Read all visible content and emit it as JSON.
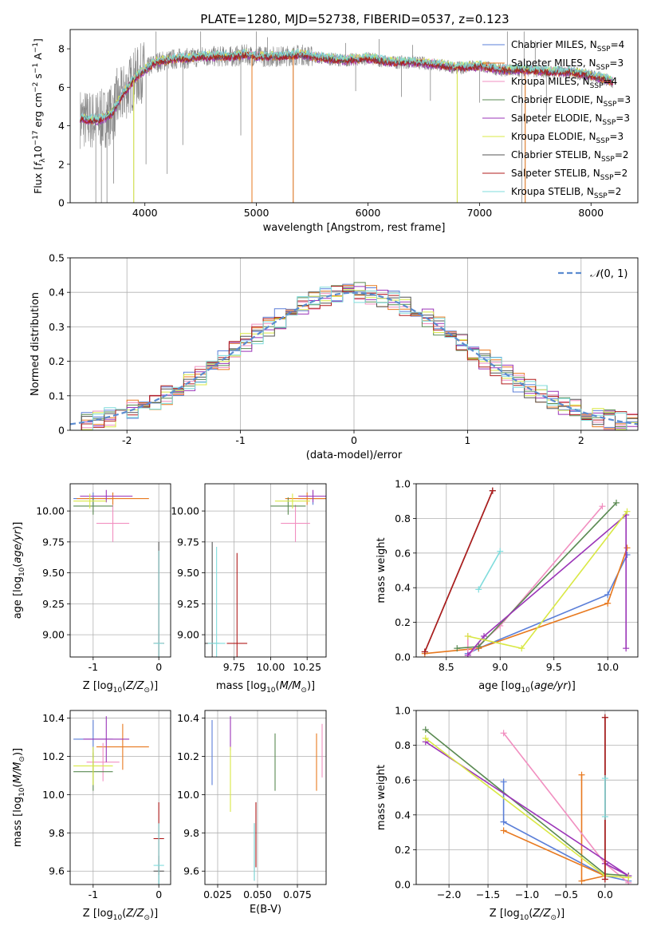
{
  "figure": {
    "title": "PLATE=1280, MJD=52738, FIBERID=0537, z=0.123"
  },
  "series_colors": {
    "Chabrier MILES": "#5b7fd8",
    "Salpeter MILES": "#e8791f",
    "Kroupa MILES": "#f18fc0",
    "Chabrier ELODIE": "#5a8a52",
    "Salpeter ELODIE": "#9b35b8",
    "Kroupa ELODIE": "#d9e844",
    "Chabrier STELIB": "#555555",
    "Salpeter STELIB": "#b01c1c",
    "Kroupa STELIB": "#7fdcdc"
  },
  "chart_data": [
    {
      "panel": "spectrum",
      "type": "line",
      "xlabel": "wavelength [Angstrom, rest frame]",
      "ylabel": "Flux [f_λ10^-17 erg cm^-2 s^-1 A^-1]",
      "xlim": [
        3330,
        8420
      ],
      "ylim": [
        0,
        9
      ],
      "xticks": [
        4000,
        5000,
        6000,
        7000,
        8000
      ],
      "yticks": [
        0,
        2,
        4,
        6,
        8
      ],
      "grid": false,
      "legend_position": "right",
      "data_color": "#888888",
      "legend": [
        {
          "name": "Chabrier MILES",
          "nssp": "4"
        },
        {
          "name": "Salpeter MILES",
          "nssp": "3"
        },
        {
          "name": "Kroupa MILES",
          "nssp": "4"
        },
        {
          "name": "Chabrier ELODIE",
          "nssp": "3"
        },
        {
          "name": "Salpeter ELODIE",
          "nssp": "3"
        },
        {
          "name": "Kroupa ELODIE",
          "nssp": "3"
        },
        {
          "name": "Chabrier STELIB",
          "nssp": "2"
        },
        {
          "name": "Salpeter STELIB",
          "nssp": "2"
        },
        {
          "name": "Kroupa STELIB",
          "nssp": "2"
        }
      ],
      "model_continuum": {
        "x": [
          3420,
          3500,
          3600,
          3700,
          3800,
          3900,
          4000,
          4100,
          4200,
          4300,
          4400,
          4500,
          4600,
          4700,
          4800,
          4900,
          5000,
          5200,
          5400,
          5600,
          5800,
          6000,
          6200,
          6400,
          6600,
          6800,
          7000,
          7200,
          7400,
          7600,
          7800,
          8000,
          8200
        ],
        "y": [
          4.4,
          4.3,
          4.3,
          4.6,
          5.6,
          6.4,
          6.9,
          7.3,
          7.4,
          7.5,
          7.5,
          7.6,
          7.6,
          7.6,
          7.6,
          7.7,
          7.6,
          7.6,
          7.7,
          7.5,
          7.4,
          7.5,
          7.3,
          7.3,
          7.2,
          7.0,
          7.1,
          6.9,
          6.9,
          6.8,
          6.8,
          6.6,
          6.3
        ]
      },
      "data_spikes_down": [
        [
          3560,
          0.0
        ],
        [
          3610,
          0.0
        ],
        [
          3660,
          0.0
        ],
        [
          3720,
          1.0
        ],
        [
          3900,
          0.0
        ],
        [
          4010,
          2.0
        ],
        [
          4200,
          1.5
        ],
        [
          4340,
          3.0
        ],
        [
          4860,
          3.5
        ],
        [
          4960,
          0.0
        ],
        [
          5330,
          0.0
        ],
        [
          5890,
          5.8
        ],
        [
          6300,
          5.5
        ],
        [
          6560,
          5.3
        ],
        [
          6800,
          0.0
        ],
        [
          7000,
          5.2
        ],
        [
          7380,
          0.0
        ],
        [
          7410,
          0.0
        ],
        [
          7600,
          4.5
        ]
      ],
      "data_spikes_up": [
        [
          3600,
          5.8
        ],
        [
          3750,
          7.0
        ],
        [
          4100,
          8.9
        ],
        [
          4500,
          8.9
        ],
        [
          5000,
          8.9
        ],
        [
          5100,
          8.6
        ],
        [
          5800,
          8.3
        ],
        [
          6100,
          8.5
        ],
        [
          6400,
          8.2
        ],
        [
          7250,
          8.9
        ],
        [
          7400,
          8.9
        ],
        [
          7500,
          8.4
        ]
      ]
    },
    {
      "panel": "residuals",
      "type": "line",
      "xlabel": "(data-model)/error",
      "ylabel": "Normed distribution",
      "xlim": [
        -2.5,
        2.5
      ],
      "ylim": [
        0,
        0.5
      ],
      "xticks": [
        -2,
        -1,
        0,
        1,
        2
      ],
      "yticks": [
        0.0,
        0.1,
        0.2,
        0.3,
        0.4,
        0.5
      ],
      "grid": true,
      "legend": [
        "N(0, 1)"
      ],
      "legend_position": "top-right",
      "gaussian": {
        "mu": 0,
        "sigma": 1
      }
    },
    {
      "panel": "age-Z",
      "type": "scatter",
      "xlabel": "Z [log10(Z/Z⊙)]",
      "ylabel": "age  [log10(age/yr)]",
      "xlim": [
        -1.35,
        0.18
      ],
      "ylim": [
        8.82,
        10.22
      ],
      "xticks": [
        -1,
        0
      ],
      "yticks": [
        9.0,
        9.25,
        9.5,
        9.75,
        10.0
      ],
      "grid": true,
      "points": [
        {
          "series": "Chabrier MILES",
          "x": -1.0,
          "y": 10.1,
          "xerr": 0.3,
          "yerr": 0.05
        },
        {
          "series": "Salpeter MILES",
          "x": -0.7,
          "y": 10.1,
          "xerr": 0.55,
          "yerr": 0.05
        },
        {
          "series": "Kroupa MILES",
          "x": -0.7,
          "y": 9.9,
          "xerr": 0.25,
          "yerr": 0.15
        },
        {
          "series": "Chabrier ELODIE",
          "x": -1.0,
          "y": 10.04,
          "xerr": 0.3,
          "yerr": 0.07
        },
        {
          "series": "Salpeter ELODIE",
          "x": -0.8,
          "y": 10.12,
          "xerr": 0.4,
          "yerr": 0.05
        },
        {
          "series": "Kroupa ELODIE",
          "x": -1.05,
          "y": 10.08,
          "xerr": 0.25,
          "yerr": 0.06
        },
        {
          "series": "Chabrier STELIB",
          "x": 0.0,
          "y": 8.93,
          "xerr": 0.08,
          "yerr": 0.82
        },
        {
          "series": "Salpeter STELIB",
          "x": 0.0,
          "y": 8.93,
          "xerr": 0.08,
          "yerr": 0.75
        },
        {
          "series": "Kroupa STELIB",
          "x": 0.0,
          "y": 8.93,
          "xerr": 0.08,
          "yerr": 0.75
        }
      ]
    },
    {
      "panel": "age-mass",
      "type": "scatter",
      "xlabel": "mass [log10(M/M⊙)]",
      "ylabel": "",
      "xlim": [
        9.55,
        10.38
      ],
      "ylim": [
        8.82,
        10.22
      ],
      "xticks": [
        9.75,
        10.0,
        10.25
      ],
      "yticks": [
        9.0,
        9.25,
        9.5,
        9.75,
        10.0
      ],
      "grid": true,
      "points": [
        {
          "series": "Chabrier MILES",
          "x": 10.29,
          "y": 10.1,
          "xerr": 0.1,
          "yerr": 0.05
        },
        {
          "series": "Salpeter MILES",
          "x": 10.25,
          "y": 10.1,
          "xerr": 0.15,
          "yerr": 0.05
        },
        {
          "series": "Kroupa MILES",
          "x": 10.17,
          "y": 9.9,
          "xerr": 0.1,
          "yerr": 0.15
        },
        {
          "series": "Chabrier ELODIE",
          "x": 10.12,
          "y": 10.04,
          "xerr": 0.12,
          "yerr": 0.07
        },
        {
          "series": "Salpeter ELODIE",
          "x": 10.29,
          "y": 10.12,
          "xerr": 0.1,
          "yerr": 0.05
        },
        {
          "series": "Kroupa ELODIE",
          "x": 10.15,
          "y": 10.08,
          "xerr": 0.12,
          "yerr": 0.06
        },
        {
          "series": "Chabrier STELIB",
          "x": 9.6,
          "y": 8.93,
          "xerr": 0.05,
          "yerr": 0.82
        },
        {
          "series": "Salpeter STELIB",
          "x": 9.77,
          "y": 8.93,
          "xerr": 0.07,
          "yerr": 0.73
        },
        {
          "series": "Kroupa STELIB",
          "x": 9.63,
          "y": 8.93,
          "xerr": 0.06,
          "yerr": 0.78
        }
      ]
    },
    {
      "panel": "weight-age",
      "type": "line",
      "xlabel": "age  [log10(age/yr)]",
      "ylabel": "mass weight",
      "xlim": [
        8.22,
        10.28
      ],
      "ylim": [
        0,
        1
      ],
      "xticks": [
        8.5,
        9.0,
        9.5,
        10.0
      ],
      "yticks": [
        0.0,
        0.2,
        0.4,
        0.6,
        0.8,
        1.0
      ],
      "grid": true,
      "series": [
        {
          "name": "Chabrier MILES",
          "x": [
            8.7,
            8.8,
            10.0,
            10.18
          ],
          "y": [
            0.02,
            0.05,
            0.36,
            0.59
          ]
        },
        {
          "name": "Salpeter MILES",
          "x": [
            8.3,
            8.8,
            10.0,
            10.18
          ],
          "y": [
            0.02,
            0.05,
            0.31,
            0.63
          ]
        },
        {
          "name": "Kroupa MILES",
          "x": [
            8.7,
            8.7,
            9.0,
            9.95
          ],
          "y": [
            0.12,
            0.01,
            0.18,
            0.87
          ]
        },
        {
          "name": "Chabrier ELODIE",
          "x": [
            8.6,
            8.8,
            10.08
          ],
          "y": [
            0.05,
            0.06,
            0.89
          ]
        },
        {
          "name": "Salpeter ELODIE",
          "x": [
            8.7,
            8.85,
            10.17,
            10.17
          ],
          "y": [
            0.01,
            0.12,
            0.82,
            0.05
          ]
        },
        {
          "name": "Kroupa ELODIE",
          "x": [
            8.7,
            9.2,
            10.18
          ],
          "y": [
            0.12,
            0.05,
            0.84
          ]
        },
        {
          "name": "Chabrier STELIB",
          "x": [
            8.3,
            8.93
          ],
          "y": [
            0.03,
            0.96
          ]
        },
        {
          "name": "Salpeter STELIB",
          "x": [
            8.3,
            8.93
          ],
          "y": [
            0.03,
            0.96
          ]
        },
        {
          "name": "Kroupa STELIB",
          "x": [
            8.8,
            9.0
          ],
          "y": [
            0.39,
            0.61
          ]
        }
      ]
    },
    {
      "panel": "mass-Z",
      "type": "scatter",
      "xlabel": "Z [log10(Z/Z⊙)]",
      "ylabel": "mass [log10(M/M⊙)]",
      "xlim": [
        -1.35,
        0.18
      ],
      "ylim": [
        9.53,
        10.44
      ],
      "xticks": [
        -1,
        0
      ],
      "yticks": [
        9.6,
        9.8,
        10.0,
        10.2,
        10.4
      ],
      "grid": true,
      "points": [
        {
          "series": "Chabrier MILES",
          "x": -1.0,
          "y": 10.29,
          "xerr": 0.3,
          "yerr": 0.1
        },
        {
          "series": "Salpeter MILES",
          "x": -0.55,
          "y": 10.25,
          "xerr": 0.4,
          "yerr": 0.12
        },
        {
          "series": "Kroupa MILES",
          "x": -0.85,
          "y": 10.17,
          "xerr": 0.25,
          "yerr": 0.1
        },
        {
          "series": "Chabrier ELODIE",
          "x": -1.0,
          "y": 10.12,
          "xerr": 0.3,
          "yerr": 0.1
        },
        {
          "series": "Salpeter ELODIE",
          "x": -0.8,
          "y": 10.29,
          "xerr": 0.35,
          "yerr": 0.12
        },
        {
          "series": "Kroupa ELODIE",
          "x": -1.0,
          "y": 10.15,
          "xerr": 0.3,
          "yerr": 0.1
        },
        {
          "series": "Chabrier STELIB",
          "x": 0.0,
          "y": 9.6,
          "xerr": 0.08,
          "yerr": 0.08
        },
        {
          "series": "Salpeter STELIB",
          "x": 0.0,
          "y": 9.77,
          "xerr": 0.08,
          "yerr": 0.19
        },
        {
          "series": "Kroupa STELIB",
          "x": 0.0,
          "y": 9.63,
          "xerr": 0.08,
          "yerr": 0.22
        }
      ]
    },
    {
      "panel": "mass-EBV",
      "type": "scatter",
      "xlabel": "E(B-V)",
      "ylabel": "",
      "xlim": [
        0.017,
        0.093
      ],
      "ylim": [
        9.53,
        10.44
      ],
      "xticks": [
        0.025,
        0.05,
        0.075
      ],
      "yticks": [
        9.6,
        9.8,
        10.0,
        10.2,
        10.4
      ],
      "grid": true,
      "points": [
        {
          "series": "Chabrier MILES",
          "x": 0.0215,
          "y": 10.22,
          "yerr": 0.17
        },
        {
          "series": "Salpeter MILES",
          "x": 0.087,
          "y": 10.17,
          "yerr": 0.15
        },
        {
          "series": "Kroupa MILES",
          "x": 0.0905,
          "y": 10.23,
          "yerr": 0.14
        },
        {
          "series": "Chabrier ELODIE",
          "x": 0.061,
          "y": 10.17,
          "yerr": 0.15
        },
        {
          "series": "Salpeter ELODIE",
          "x": 0.033,
          "y": 10.32,
          "yerr": 0.09
        },
        {
          "series": "Kroupa ELODIE",
          "x": 0.033,
          "y": 10.08,
          "yerr": 0.17
        },
        {
          "series": "Chabrier STELIB",
          "x": 0.048,
          "y": 9.7,
          "yerr": 0.15
        },
        {
          "series": "Salpeter STELIB",
          "x": 0.049,
          "y": 9.79,
          "yerr": 0.17
        },
        {
          "series": "Kroupa STELIB",
          "x": 0.048,
          "y": 9.7,
          "yerr": 0.15
        }
      ]
    },
    {
      "panel": "weight-Z",
      "type": "line",
      "xlabel": "Z [log10(Z/Z⊙)]",
      "ylabel": "mass weight",
      "xlim": [
        -2.42,
        0.42
      ],
      "ylim": [
        0,
        1
      ],
      "xticks": [
        -2.0,
        -1.5,
        -1.0,
        -0.5,
        0.0
      ],
      "yticks": [
        0.0,
        0.2,
        0.4,
        0.6,
        0.8,
        1.0
      ],
      "grid": true,
      "series": [
        {
          "name": "Chabrier MILES",
          "x": [
            -1.3,
            -1.3,
            -1.3,
            0.0,
            0.3
          ],
          "y": [
            0.59,
            0.36,
            0.36,
            0.05,
            0.02
          ]
        },
        {
          "name": "Salpeter MILES",
          "x": [
            -1.3,
            0.0,
            -0.3,
            -0.3
          ],
          "y": [
            0.31,
            0.05,
            0.02,
            0.63
          ]
        },
        {
          "name": "Kroupa MILES",
          "x": [
            -1.3,
            0.0,
            0.3
          ],
          "y": [
            0.87,
            0.12,
            0.01
          ]
        },
        {
          "name": "Chabrier ELODIE",
          "x": [
            -2.3,
            0.0,
            0.3
          ],
          "y": [
            0.89,
            0.06,
            0.05
          ]
        },
        {
          "name": "Salpeter ELODIE",
          "x": [
            -2.3,
            0.3,
            0.0
          ],
          "y": [
            0.82,
            0.05,
            0.12
          ]
        },
        {
          "name": "Kroupa ELODIE",
          "x": [
            -2.3,
            0.0,
            0.3
          ],
          "y": [
            0.84,
            0.05,
            0.04
          ]
        },
        {
          "name": "Chabrier STELIB",
          "x": [
            0.0,
            0.0
          ],
          "y": [
            0.03,
            0.96
          ]
        },
        {
          "name": "Salpeter STELIB",
          "x": [
            0.0,
            0.0
          ],
          "y": [
            0.03,
            0.96
          ]
        },
        {
          "name": "Kroupa STELIB",
          "x": [
            0.0,
            0.0
          ],
          "y": [
            0.39,
            0.61
          ]
        }
      ]
    }
  ]
}
